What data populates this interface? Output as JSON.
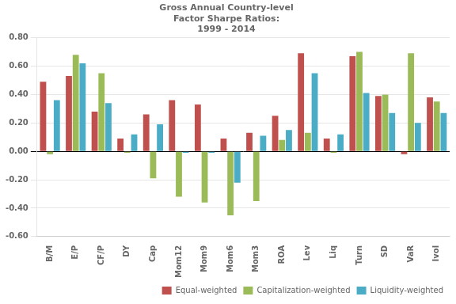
{
  "chart_data": {
    "type": "bar",
    "title": [
      "Gross Annual Country-level",
      "Factor Sharpe Ratios:",
      "1999 - 2014"
    ],
    "categories": [
      "B/M",
      "E/P",
      "CF/P",
      "DY",
      "Cap",
      "Mom12",
      "Mom9",
      "Mom6",
      "Mom3",
      "ROA",
      "Lev",
      "Liq",
      "Turn",
      "SD",
      "VaR",
      "Ivol"
    ],
    "series": [
      {
        "name": "Equal-weighted",
        "color": "#C0504D",
        "values": [
          0.49,
          0.53,
          0.28,
          0.09,
          0.26,
          0.36,
          0.33,
          0.09,
          0.13,
          0.25,
          0.69,
          0.09,
          0.67,
          0.39,
          -0.02,
          0.38
        ]
      },
      {
        "name": "Capitalization-weighted",
        "color": "#9BBB59",
        "values": [
          -0.02,
          0.68,
          0.55,
          -0.01,
          -0.19,
          -0.32,
          -0.36,
          -0.45,
          -0.35,
          0.08,
          0.13,
          -0.01,
          0.7,
          0.4,
          0.69,
          0.35
        ]
      },
      {
        "name": "Liquidity-weighted",
        "color": "#4BACC6",
        "values": [
          0.36,
          0.62,
          0.34,
          0.12,
          0.19,
          -0.01,
          -0.01,
          -0.22,
          0.11,
          0.15,
          0.55,
          0.12,
          0.41,
          0.27,
          0.2,
          0.27
        ]
      }
    ],
    "ylim": [
      -0.6,
      0.8
    ],
    "yticks": [
      {
        "value": -0.6,
        "label": "-0.60"
      },
      {
        "value": -0.4,
        "label": "-0.40"
      },
      {
        "value": -0.2,
        "label": "-0.20"
      },
      {
        "value": 0,
        "label": "0.00"
      },
      {
        "value": 0.2,
        "label": "0.20"
      },
      {
        "value": 0.4,
        "label": "0.40"
      },
      {
        "value": 0.6,
        "label": "0.60"
      },
      {
        "value": 0.8,
        "label": "0.80"
      }
    ],
    "grid": true,
    "legend": "lower right"
  }
}
